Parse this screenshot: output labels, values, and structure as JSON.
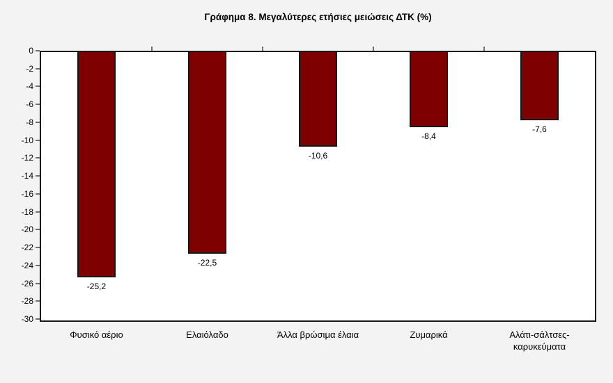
{
  "chart_data": {
    "type": "bar",
    "title": "Γράφημα 8. Μεγαλύτερες ετήσιες μειώσεις ΔΤΚ (%)",
    "categories": [
      "Φυσικό αέριο",
      "Ελαιόλαδο",
      "Άλλα βρώσιμα έλαια",
      "Ζυμαρικά",
      "Αλάτι-σάλτσες-καρυκεύματα"
    ],
    "values": [
      -25.2,
      -22.5,
      -10.6,
      -8.4,
      -7.6
    ],
    "value_labels": [
      "-25,2",
      "-22,5",
      "-10,6",
      "-8,4",
      "-7,6"
    ],
    "xlabel": "",
    "ylabel": "",
    "ylim": [
      -30,
      0
    ],
    "ytick_step": 2,
    "grid": false,
    "legend": "none",
    "bar_color": "#7F0000",
    "bar_border_color": "#161616",
    "decimal_separator": ","
  },
  "colors": {
    "page_background": "#F3F3F3",
    "plot_background": "#FFFFFF",
    "axis_line": "#161616",
    "tick_mark": "#6F6F6F",
    "text": "#000000"
  }
}
